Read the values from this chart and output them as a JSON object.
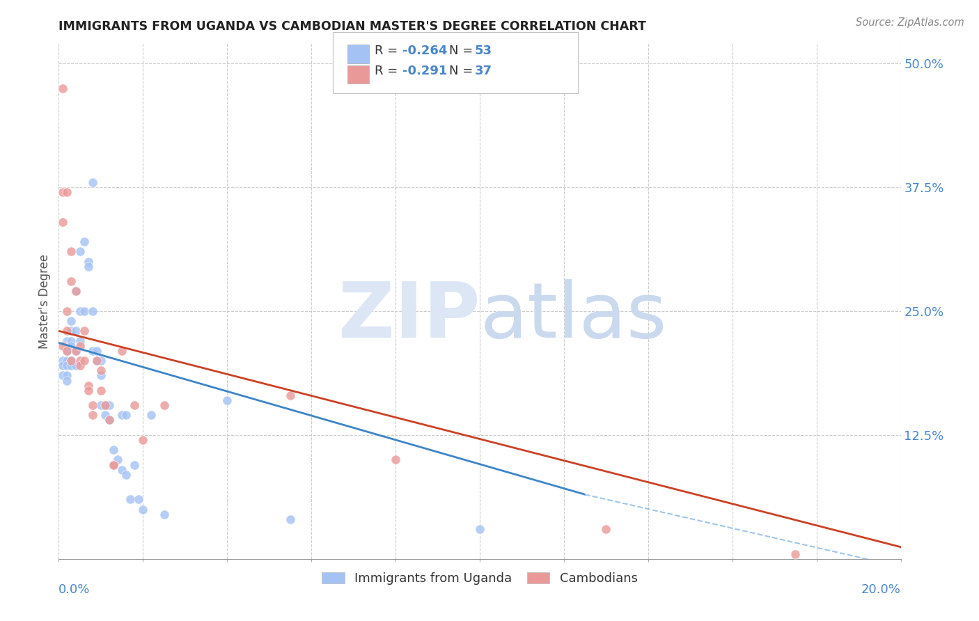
{
  "title": "IMMIGRANTS FROM UGANDA VS CAMBODIAN MASTER'S DEGREE CORRELATION CHART",
  "source": "Source: ZipAtlas.com",
  "ylabel": "Master's Degree",
  "right_yticks_vals": [
    0.5,
    0.375,
    0.25,
    0.125
  ],
  "right_yticks_labels": [
    "50.0%",
    "37.5%",
    "25.0%",
    "12.5%"
  ],
  "blue_color": "#a4c2f4",
  "pink_color": "#ea9999",
  "blue_line_color": "#3d85c8",
  "pink_line_color": "#cc4125",
  "dashed_line_color": "#9fc5e8",
  "blue_scatter_x": [
    0.001,
    0.001,
    0.001,
    0.002,
    0.002,
    0.002,
    0.002,
    0.002,
    0.002,
    0.003,
    0.003,
    0.003,
    0.003,
    0.003,
    0.003,
    0.004,
    0.004,
    0.004,
    0.004,
    0.005,
    0.005,
    0.005,
    0.006,
    0.006,
    0.007,
    0.007,
    0.008,
    0.008,
    0.008,
    0.009,
    0.009,
    0.01,
    0.01,
    0.01,
    0.011,
    0.011,
    0.012,
    0.012,
    0.013,
    0.014,
    0.015,
    0.015,
    0.016,
    0.016,
    0.017,
    0.018,
    0.019,
    0.02,
    0.022,
    0.025,
    0.04,
    0.055,
    0.1
  ],
  "blue_scatter_y": [
    0.2,
    0.195,
    0.185,
    0.22,
    0.21,
    0.2,
    0.195,
    0.185,
    0.18,
    0.24,
    0.23,
    0.22,
    0.215,
    0.2,
    0.195,
    0.27,
    0.23,
    0.21,
    0.195,
    0.31,
    0.25,
    0.22,
    0.32,
    0.25,
    0.3,
    0.295,
    0.38,
    0.25,
    0.21,
    0.21,
    0.2,
    0.2,
    0.185,
    0.155,
    0.155,
    0.145,
    0.155,
    0.14,
    0.11,
    0.1,
    0.145,
    0.09,
    0.085,
    0.145,
    0.06,
    0.095,
    0.06,
    0.05,
    0.145,
    0.045,
    0.16,
    0.04,
    0.03
  ],
  "pink_scatter_x": [
    0.001,
    0.001,
    0.001,
    0.001,
    0.002,
    0.002,
    0.002,
    0.002,
    0.003,
    0.003,
    0.003,
    0.004,
    0.004,
    0.005,
    0.005,
    0.005,
    0.006,
    0.006,
    0.007,
    0.007,
    0.008,
    0.008,
    0.009,
    0.01,
    0.01,
    0.011,
    0.012,
    0.013,
    0.013,
    0.015,
    0.018,
    0.02,
    0.025,
    0.055,
    0.08,
    0.13,
    0.175
  ],
  "pink_scatter_y": [
    0.475,
    0.37,
    0.34,
    0.215,
    0.37,
    0.25,
    0.23,
    0.21,
    0.31,
    0.28,
    0.2,
    0.27,
    0.21,
    0.215,
    0.2,
    0.195,
    0.23,
    0.2,
    0.175,
    0.17,
    0.145,
    0.155,
    0.2,
    0.19,
    0.17,
    0.155,
    0.14,
    0.095,
    0.095,
    0.21,
    0.155,
    0.12,
    0.155,
    0.165,
    0.1,
    0.03,
    0.005
  ],
  "blue_line_x": [
    0.0,
    0.125
  ],
  "blue_line_y": [
    0.218,
    0.065
  ],
  "pink_line_x": [
    0.0,
    0.2
  ],
  "pink_line_y": [
    0.23,
    0.012
  ],
  "dashed_line_x": [
    0.125,
    0.2
  ],
  "dashed_line_y": [
    0.065,
    -0.008
  ],
  "xlim": [
    0.0,
    0.2
  ],
  "ylim": [
    0.0,
    0.52
  ],
  "legend1_label": "R = -0.264   N = 53",
  "legend2_label": "R = -0.291   N = 37",
  "legend_r1": "R = ",
  "legend_v1": "-0.264",
  "legend_n1": "   N = ",
  "legend_nv1": "53",
  "legend_r2": "R = ",
  "legend_v2": "-0.291",
  "legend_n2": "   N = ",
  "legend_nv2": "37"
}
